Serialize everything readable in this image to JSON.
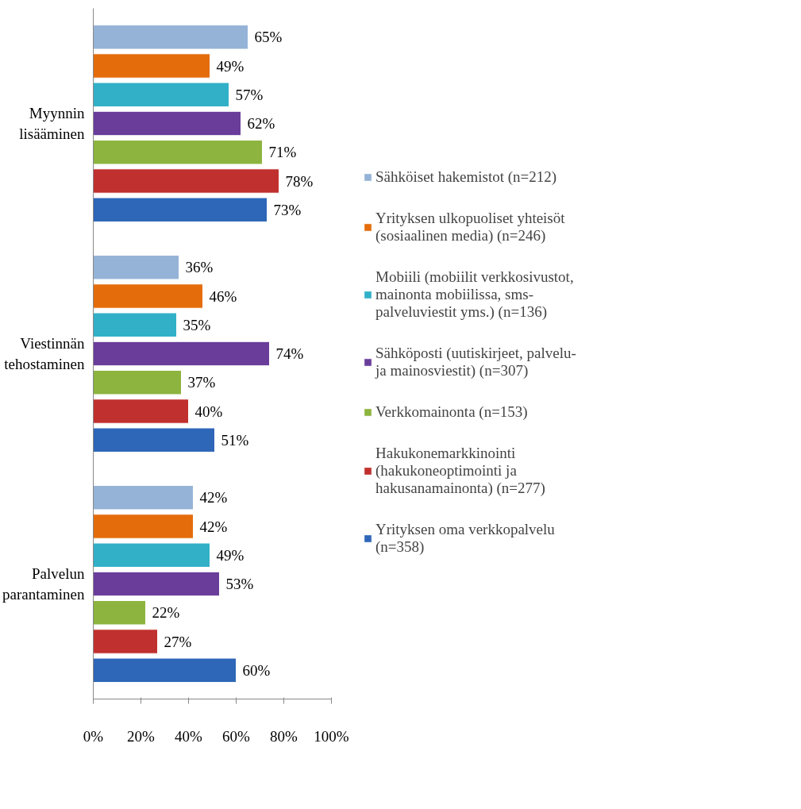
{
  "chart_data": {
    "type": "bar",
    "orientation": "horizontal",
    "categories": [
      "Myynnin lisääminen",
      "Viestinnän tehostaminen",
      "Palvelun parantaminen"
    ],
    "series": [
      {
        "name": "Sähköiset hakemistot (n=212)",
        "color": "#95b3d7",
        "values": [
          65,
          36,
          42
        ],
        "value_labels": [
          "65%",
          "36%",
          "42%"
        ]
      },
      {
        "name": "Yrityksen ulkopuoliset yhteisöt (sosiaalinen media) (n=246)",
        "color": "#e46c0a",
        "values": [
          49,
          46,
          42
        ],
        "value_labels": [
          "49%",
          "46%",
          "42%"
        ]
      },
      {
        "name": "Mobiili (mobiilit verkkosivustot, mainonta mobiilissa, sms-palveluviestit yms.) (n=136)",
        "color": "#31b0c8",
        "values": [
          57,
          35,
          49
        ],
        "value_labels": [
          "57%",
          "35%",
          "49%"
        ]
      },
      {
        "name": "Sähköposti (uutiskirjeet, palvelu- ja mainosviestit) (n=307)",
        "color": "#6a3d9a",
        "values": [
          62,
          74,
          53
        ],
        "value_labels": [
          "62%",
          "74%",
          "53%"
        ]
      },
      {
        "name": "Verkkomainonta (n=153)",
        "color": "#8db43e",
        "values": [
          71,
          37,
          22
        ],
        "value_labels": [
          "71%",
          "37%",
          "22%"
        ]
      },
      {
        "name": "Hakukonemarkkinointi (hakukoneoptimointi ja hakusanamainonta) (n=277)",
        "color": "#c0302e",
        "values": [
          78,
          40,
          27
        ],
        "value_labels": [
          "78%",
          "40%",
          "27%"
        ]
      },
      {
        "name": "Yrityksen oma verkkopalvelu (n=358)",
        "color": "#2e66b8",
        "values": [
          73,
          51,
          60
        ],
        "value_labels": [
          "73%",
          "51%",
          "60%"
        ]
      }
    ],
    "xlim": [
      0,
      100
    ],
    "xticks": [
      {
        "value": 0,
        "label": "0%"
      },
      {
        "value": 20,
        "label": "20%"
      },
      {
        "value": 40,
        "label": "40%"
      },
      {
        "value": 60,
        "label": "60%"
      },
      {
        "value": 80,
        "label": "80%"
      },
      {
        "value": 100,
        "label": "100%"
      }
    ],
    "grid": false,
    "legend": "right"
  }
}
